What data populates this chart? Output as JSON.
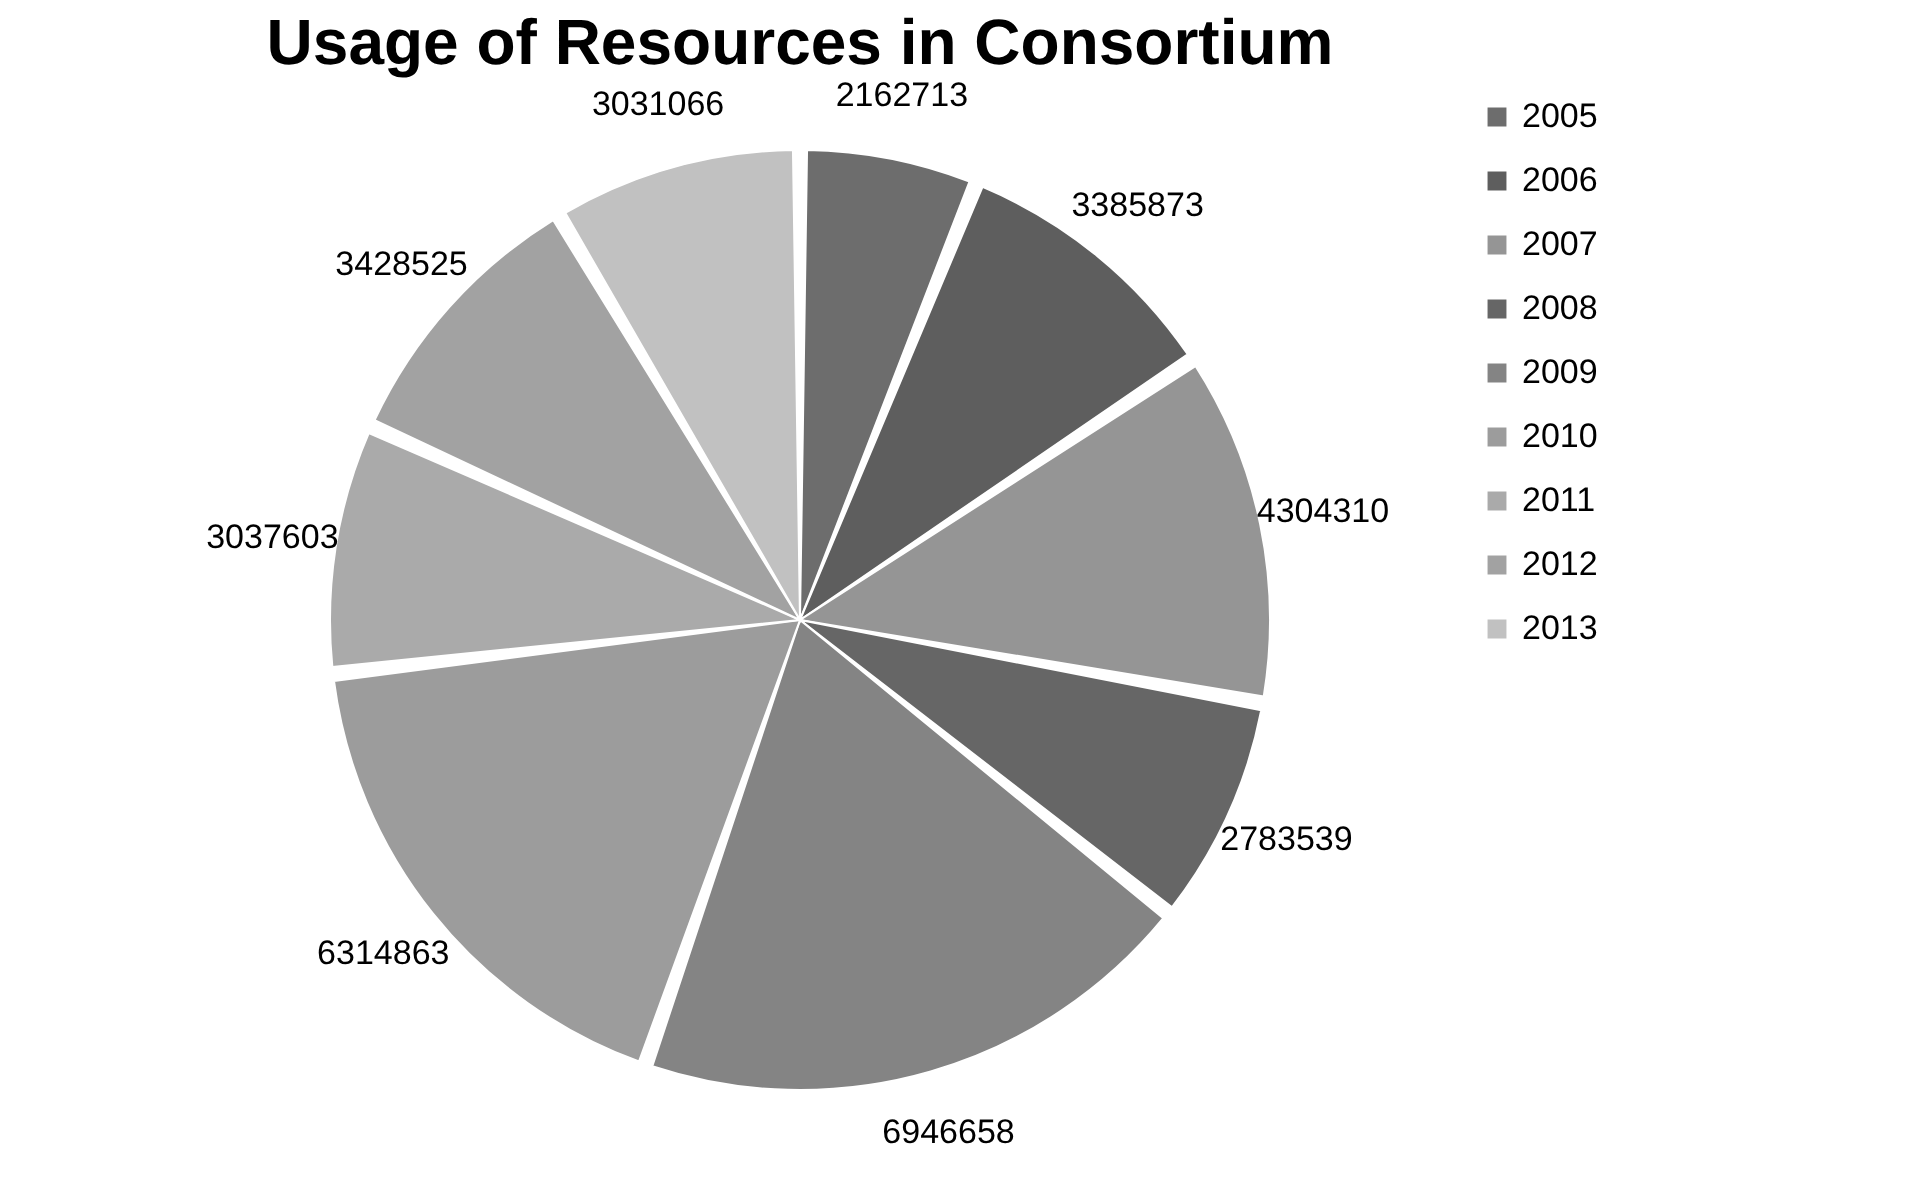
{
  "chart_data": {
    "type": "pie",
    "title": "Usage of Resources in Consortium",
    "categories": [
      "2005",
      "2006",
      "2007",
      "2008",
      "2009",
      "2010",
      "2011",
      "2012",
      "2013"
    ],
    "values": [
      2162713,
      3385873,
      4304310,
      2783539,
      6946658,
      6314863,
      3037603,
      3428525,
      3031066
    ],
    "colors": [
      "#6d6d6d",
      "#5e5e5e",
      "#959595",
      "#666666",
      "#848484",
      "#9c9c9c",
      "#aaaaaa",
      "#a2a2a2",
      "#c1c1c1"
    ],
    "data_labels": true,
    "legend": "right"
  }
}
